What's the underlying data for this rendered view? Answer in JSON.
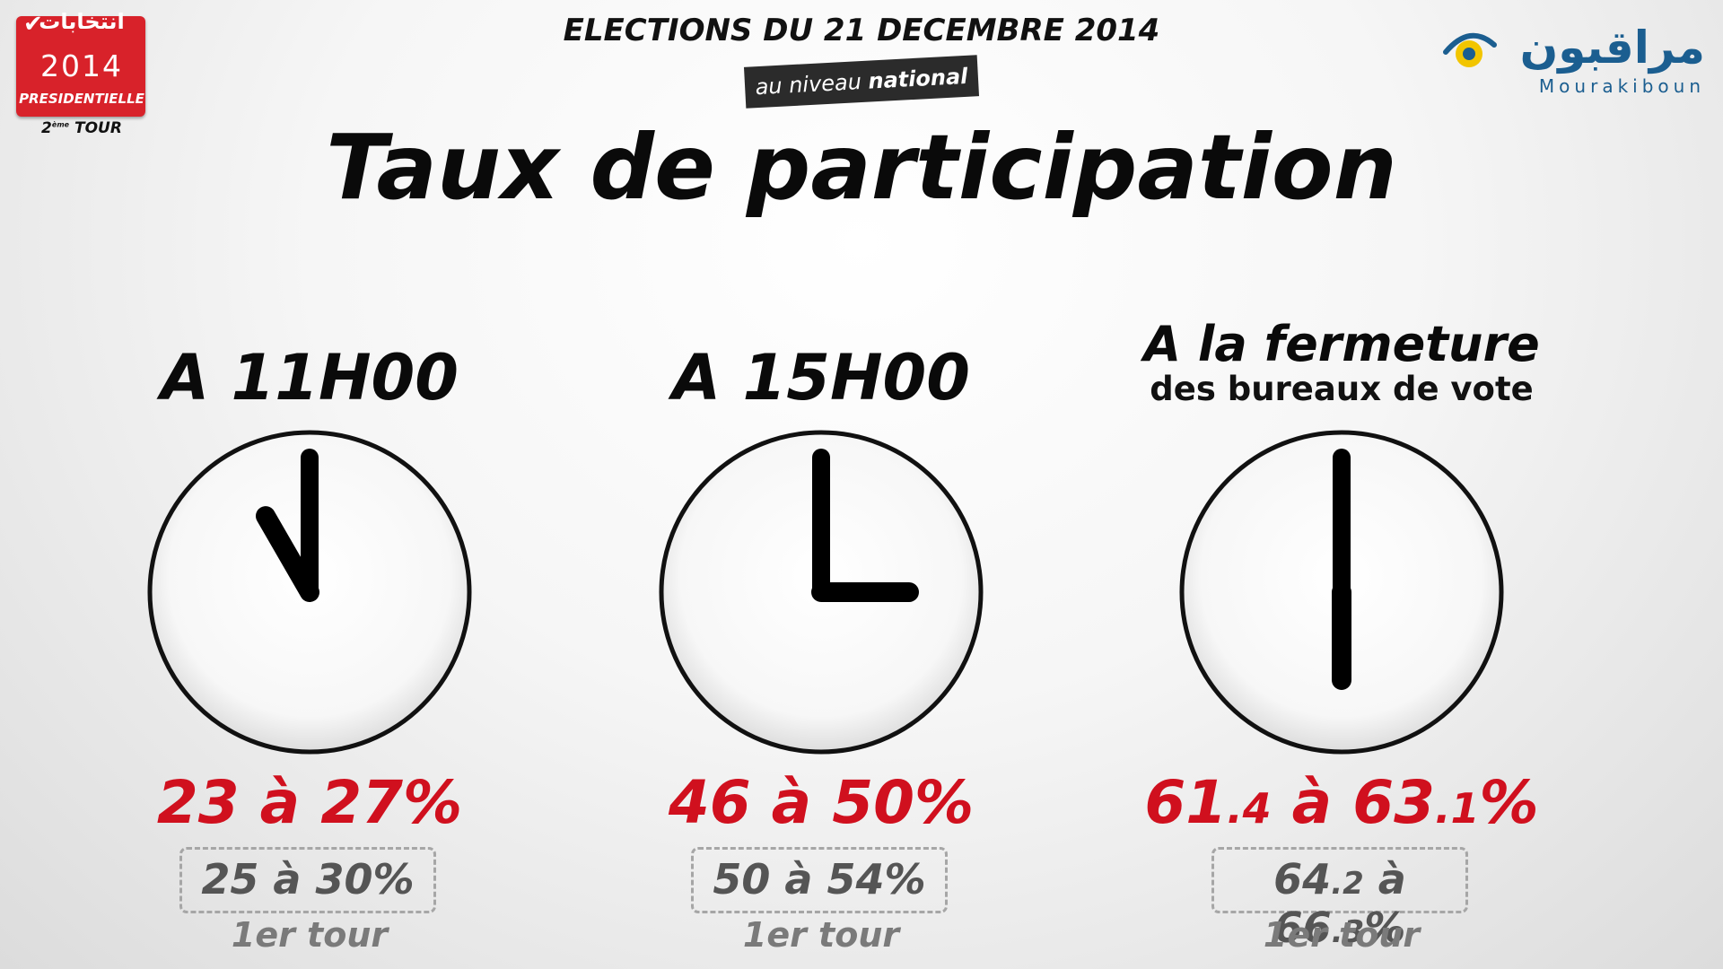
{
  "badge": {
    "arabic": "انتخابات",
    "year": "2014",
    "subtitle": "PRESIDENTIELLE",
    "round_number": "2",
    "round_suffix": "ème",
    "round_word": "TOUR",
    "color": "#d8222a"
  },
  "logo": {
    "arabic": "مراقبون",
    "latin": "Mourakiboun",
    "icon": "eye-icon",
    "color": "#1b5e90"
  },
  "header": {
    "date": "ELECTIONS DU 21 DECEMBRE 2014",
    "scope_prefix": "au niveau",
    "scope_bold": "national",
    "title": "Taux de participation"
  },
  "columns": [
    {
      "time": "A 11H00",
      "clock": {
        "hour": 11,
        "minute": 0
      },
      "rate": {
        "low": "23",
        "high": "27",
        "sep": "à",
        "unit": "%"
      },
      "previous": {
        "low": "25",
        "high": "30",
        "sep": "à",
        "unit": "%"
      },
      "round_label": "1er tour"
    },
    {
      "time": "A 15H00",
      "clock": {
        "hour": 15,
        "minute": 0
      },
      "rate": {
        "low": "46",
        "high": "50",
        "sep": "à",
        "unit": "%"
      },
      "previous": {
        "low": "50",
        "high": "54",
        "sep": "à",
        "unit": "%"
      },
      "round_label": "1er tour"
    },
    {
      "time": "A la fermeture",
      "subtitle": "des bureaux de vote",
      "clock": {
        "hour": 18,
        "minute": 0
      },
      "rate": {
        "low_int": "61",
        "low_dec": ".4",
        "high_int": "63",
        "high_dec": ".1",
        "sep": "à",
        "unit": "%"
      },
      "previous": {
        "low_int": "64",
        "low_dec": ".2",
        "high_int": "66",
        "high_dec": ".3",
        "sep": "à",
        "unit": "%"
      },
      "round_label": "1er tour"
    }
  ],
  "colors": {
    "rate": "#d0101e",
    "previous": "#555555",
    "round": "#7a7a7a"
  }
}
